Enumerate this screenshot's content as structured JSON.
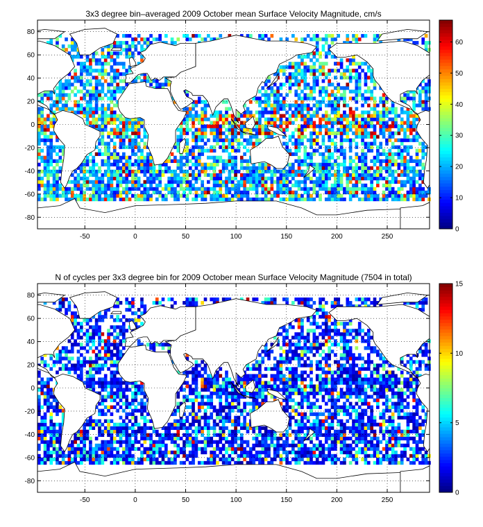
{
  "chart_data": [
    {
      "type": "heatmap",
      "title": "3x3 degree bin–averaged 2009 October mean Surface Velocity Magnitude, cm/s",
      "xlabel": "",
      "ylabel": "",
      "xlim": [
        -97,
        292
      ],
      "ylim": [
        -90,
        90
      ],
      "x_ticks": [
        -50,
        0,
        50,
        100,
        150,
        200,
        250
      ],
      "y_ticks": [
        -80,
        -60,
        -40,
        -20,
        0,
        20,
        40,
        60,
        80
      ],
      "grid": true,
      "colorbar": {
        "min": 0,
        "max": 67,
        "ticks": [
          0,
          10,
          20,
          30,
          40,
          50,
          60
        ],
        "colormap": "jet"
      },
      "bin_size_deg": 3
    },
    {
      "type": "heatmap",
      "title": "N of cycles per 3x3 degree bin for 2009 October mean Surface Velocity Magnitude (7504 in total)",
      "xlabel": "",
      "ylabel": "",
      "xlim": [
        -97,
        292
      ],
      "ylim": [
        -90,
        90
      ],
      "x_ticks": [
        -50,
        0,
        50,
        100,
        150,
        200,
        250
      ],
      "y_ticks": [
        -80,
        -60,
        -40,
        -20,
        0,
        20,
        40,
        60,
        80
      ],
      "grid": true,
      "colorbar": {
        "min": 0,
        "max": 15,
        "ticks": [
          0,
          5,
          10,
          15
        ],
        "colormap": "jet"
      },
      "bin_size_deg": 3
    }
  ],
  "colors": {
    "axis": "#000000",
    "land": "#ffffff",
    "background": "#ffffff"
  }
}
